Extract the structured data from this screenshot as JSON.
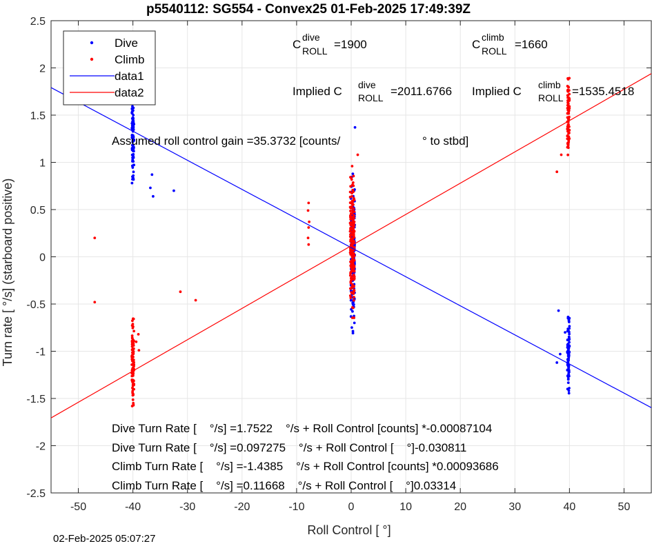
{
  "chart_data": {
    "type": "scatter",
    "title": "p5540112: SG554 - Convex25 01-Feb-2025 17:49:39Z",
    "xlabel": "Roll Control [   °]",
    "ylabel": "Turn rate [   °/s] (starboard positive)",
    "xlim": [
      -55,
      55
    ],
    "ylim": [
      -2.5,
      2.5
    ],
    "xticks": [
      -50,
      -40,
      -30,
      -20,
      -10,
      0,
      10,
      20,
      30,
      40,
      50
    ],
    "yticks": [
      -2.5,
      -2,
      -1.5,
      -1,
      -0.5,
      0,
      0.5,
      1,
      1.5,
      2,
      2.5
    ],
    "xtick_labels": [
      "-50",
      "-40",
      "-30",
      "-20",
      "-10",
      "0",
      "10",
      "20",
      "30",
      "40",
      "50"
    ],
    "ytick_labels": [
      "-2.5",
      "-2",
      "-1.5",
      "-1",
      "-0.5",
      "0",
      "0.5",
      "1",
      "1.5",
      "2",
      "2.5"
    ],
    "grid": true,
    "legend_position": "top-left",
    "legend": [
      "Dive",
      "Climb",
      "data1",
      "data2"
    ],
    "series": [
      {
        "name": "Dive",
        "kind": "points",
        "color": "#0000ff",
        "clusters": [
          {
            "x_center": -40,
            "x_spread": 0.4,
            "y_min": 0.62,
            "y_max": 1.9,
            "n": 95
          },
          {
            "x_center": 0.3,
            "x_spread": 0.7,
            "y_min": -0.95,
            "y_max": 1.08,
            "n": 200
          },
          {
            "x_center": 39.8,
            "x_spread": 0.4,
            "y_min": -1.55,
            "y_max": -0.45,
            "n": 90
          }
        ],
        "points": [
          [
            -36.5,
            0.87
          ],
          [
            -36.3,
            0.64
          ],
          [
            -36.8,
            0.73
          ],
          [
            -32.5,
            0.7
          ],
          [
            0.7,
            1.37
          ],
          [
            38,
            -0.57
          ],
          [
            37.7,
            -1.12
          ],
          [
            38.3,
            -1.03
          ],
          [
            39.2,
            -0.8
          ]
        ]
      },
      {
        "name": "Climb",
        "kind": "points",
        "color": "#ff0000",
        "clusters": [
          {
            "x_center": -40,
            "x_spread": 0.4,
            "y_min": -1.75,
            "y_max": -0.52,
            "n": 95
          },
          {
            "x_center": 0.2,
            "x_spread": 0.8,
            "y_min": -0.93,
            "y_max": 1.1,
            "n": 200
          },
          {
            "x_center": 39.8,
            "x_spread": 0.4,
            "y_min": 0.82,
            "y_max": 2.1,
            "n": 80
          }
        ],
        "points": [
          [
            -47,
            0.2
          ],
          [
            -47,
            -0.48
          ],
          [
            -31.3,
            -0.37
          ],
          [
            -28.5,
            -0.46
          ],
          [
            -7.8,
            0.57
          ],
          [
            -7.9,
            0.49
          ],
          [
            -7.7,
            0.37
          ],
          [
            -7.8,
            0.31
          ],
          [
            -7.9,
            0.2
          ],
          [
            -7.8,
            0.13
          ],
          [
            37.7,
            0.9
          ],
          [
            38.5,
            1.08
          ],
          [
            -38.9,
            -0.99
          ],
          [
            -39.4,
            -0.9
          ],
          [
            -39.0,
            -0.82
          ],
          [
            1.2,
            1.08
          ]
        ]
      },
      {
        "name": "data1",
        "kind": "line",
        "color": "#0000ff",
        "slope": -0.030811,
        "intercept": 0.097275
      },
      {
        "name": "data2",
        "kind": "line",
        "color": "#ff0000",
        "slope": 0.03314,
        "intercept": 0.11668
      }
    ],
    "annotations": {
      "c_dive_label": "C",
      "c_dive_sup": "dive",
      "c_dive_sub": "ROLL",
      "c_dive_value": "=1900",
      "c_climb_label": "C",
      "c_climb_sup": "climb",
      "c_climb_sub": "ROLL",
      "c_climb_value": "=1660",
      "implied_dive_label": "Implied C",
      "implied_dive_sup": "dive",
      "implied_dive_sub": "ROLL",
      "implied_dive_value": "=2011.6766",
      "implied_climb_label": "Implied C",
      "implied_climb_sup": "climb",
      "implied_climb_sub": "ROLL",
      "implied_climb_value": "=1535.4518",
      "gain_text": "Assumed roll control gain =35.3732 [counts/",
      "gain_unit": "° to stbd]",
      "fit_lines": [
        "Dive Turn Rate [    °/s] =1.7522    °/s + Roll Control [counts] *-0.00087104",
        "Dive Turn Rate [    °/s] =0.097275    °/s + Roll Control [    °]-0.030811",
        "Climb Turn Rate [    °/s] =-1.4385    °/s + Roll Control [counts] *0.00093686",
        "Climb Turn Rate [    °/s] =0.11668    °/s + Roll Control [    °]0.03314"
      ]
    },
    "footer_timestamp": "02-Feb-2025 05:07:27"
  }
}
